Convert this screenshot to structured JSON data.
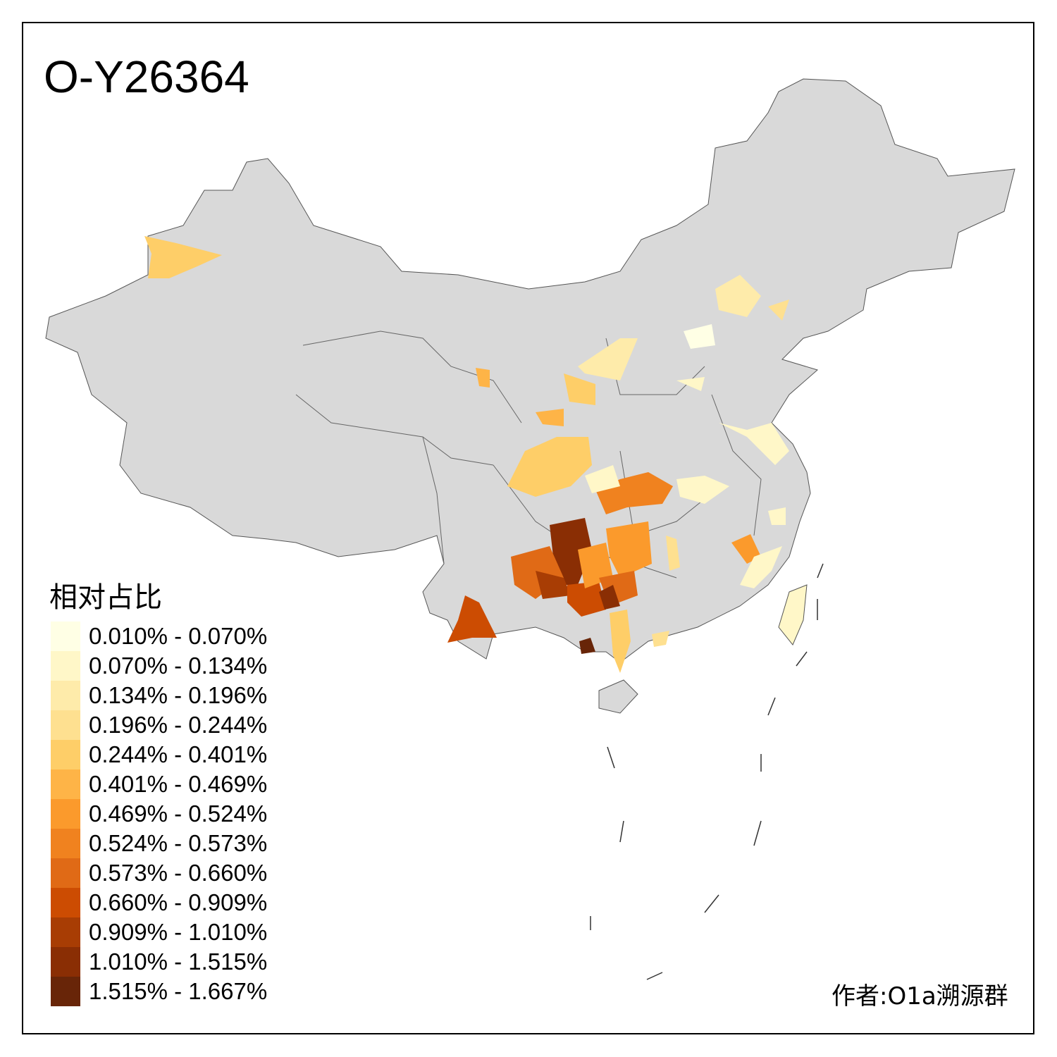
{
  "title": "O-Y26364",
  "legend": {
    "title": "相对占比",
    "items": [
      {
        "label": "0.010% - 0.070%",
        "color": "#FFFFE5"
      },
      {
        "label": "0.070% - 0.134%",
        "color": "#FFF7C8"
      },
      {
        "label": "0.134% - 0.196%",
        "color": "#FEEBAA"
      },
      {
        "label": "0.196% - 0.244%",
        "color": "#FEE090"
      },
      {
        "label": "0.244% - 0.401%",
        "color": "#FECE68"
      },
      {
        "label": "0.401% - 0.469%",
        "color": "#FEB447"
      },
      {
        "label": "0.469% - 0.524%",
        "color": "#FB9A2C"
      },
      {
        "label": "0.524% - 0.573%",
        "color": "#F0821F"
      },
      {
        "label": "0.573% - 0.660%",
        "color": "#E06A16"
      },
      {
        "label": "0.660% - 0.909%",
        "color": "#CC4C02"
      },
      {
        "label": "0.909% - 1.010%",
        "color": "#A83D04"
      },
      {
        "label": "1.010% - 1.515%",
        "color": "#8A2E04"
      },
      {
        "label": "1.515% - 1.667%",
        "color": "#682508"
      }
    ]
  },
  "author": "作者:O1a溯源群",
  "base_color": "#D9D9D9"
}
